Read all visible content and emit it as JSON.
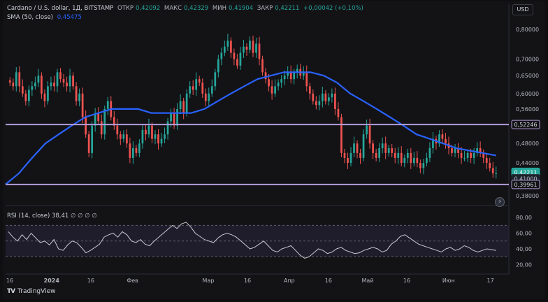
{
  "header": {
    "symbol": "Cardano / U.S. dollar, 1Д, BITSTAMP",
    "open_label": "ОТКР",
    "open": "0,42092",
    "high_label": "МАКС",
    "high": "0,42329",
    "low_label": "МИН",
    "low": "0,41904",
    "close_label": "ЗАКР",
    "close": "0,42211",
    "change": "+0,00042 (+0,10%)",
    "sma_label": "SMA (50, close)",
    "sma_value": "0,45475"
  },
  "currency": "USD",
  "rsi": {
    "label": "RSI (14, close)",
    "value": "38,41",
    "extras": "∅ ∅ ∅ ∅"
  },
  "brand": "TradingView",
  "icons": [
    "lightning-icon",
    "flag-icon-1",
    "flag-icon-2"
  ],
  "colors": {
    "up": "#26a69a",
    "down": "#ef5350",
    "sma": "#2962ff",
    "hline": "#b39ddb",
    "rsi": "#c9c9d0",
    "rsi_band": "#2a2540"
  },
  "chart_data": [
    {
      "type": "candlestick",
      "title": "Cardano / U.S. dollar, 1Д, BITSTAMP",
      "y_ticks": [
        "0,80000",
        "0,70000",
        "0,65000",
        "0,60000",
        "0,56000",
        "0,48000",
        "0,44000",
        "0,40000",
        "0,38000"
      ],
      "y_tick_values": [
        0.8,
        0.7,
        0.65,
        0.6,
        0.56,
        0.48,
        0.44,
        0.4,
        0.38
      ],
      "x_ticks": [
        "16",
        "2024",
        "16",
        "Фев",
        "Мар",
        "16",
        "Апр",
        "16",
        "Май",
        "16",
        "Июн",
        "17"
      ],
      "x_tick_days": [
        0,
        16,
        31,
        47,
        76,
        91,
        107,
        122,
        137,
        152,
        168,
        184
      ],
      "price_badges": [
        {
          "label": "0,52246",
          "value": 0.52246,
          "kind": "level"
        },
        {
          "label": "0,42211",
          "value": 0.42211,
          "kind": "last"
        },
        {
          "label": "0,41000",
          "value": 0.41,
          "kind": "timer"
        },
        {
          "label": "0,39961",
          "value": 0.39961,
          "kind": "level"
        }
      ],
      "horizontal_levels": [
        0.52246,
        0.39961
      ],
      "series": [
        {
          "name": "OHLC (approx. closes)",
          "closes": [
            0.63,
            0.62,
            0.66,
            0.62,
            0.6,
            0.58,
            0.61,
            0.62,
            0.63,
            0.65,
            0.6,
            0.58,
            0.62,
            0.63,
            0.62,
            0.66,
            0.64,
            0.63,
            0.62,
            0.65,
            0.62,
            0.58,
            0.6,
            0.54,
            0.5,
            0.46,
            0.52,
            0.55,
            0.53,
            0.5,
            0.56,
            0.58,
            0.54,
            0.52,
            0.5,
            0.49,
            0.5,
            0.48,
            0.45,
            0.47,
            0.46,
            0.48,
            0.51,
            0.5,
            0.52,
            0.49,
            0.5,
            0.48,
            0.49,
            0.5,
            0.53,
            0.55,
            0.52,
            0.56,
            0.58,
            0.55,
            0.6,
            0.62,
            0.61,
            0.64,
            0.63,
            0.6,
            0.58,
            0.6,
            0.62,
            0.66,
            0.7,
            0.72,
            0.74,
            0.76,
            0.72,
            0.7,
            0.68,
            0.72,
            0.74,
            0.73,
            0.76,
            0.72,
            0.75,
            0.7,
            0.66,
            0.64,
            0.62,
            0.6,
            0.62,
            0.63,
            0.64,
            0.65,
            0.66,
            0.64,
            0.66,
            0.67,
            0.65,
            0.66,
            0.62,
            0.6,
            0.58,
            0.57,
            0.58,
            0.6,
            0.58,
            0.59,
            0.6,
            0.56,
            0.54,
            0.46,
            0.45,
            0.44,
            0.46,
            0.48,
            0.46,
            0.45,
            0.5,
            0.52,
            0.48,
            0.46,
            0.45,
            0.47,
            0.48,
            0.46,
            0.47,
            0.46,
            0.45,
            0.46,
            0.44,
            0.45,
            0.46,
            0.44,
            0.45,
            0.44,
            0.43,
            0.44,
            0.45,
            0.47,
            0.49,
            0.48,
            0.5,
            0.49,
            0.48,
            0.47,
            0.46,
            0.47,
            0.46,
            0.45,
            0.45,
            0.46,
            0.45,
            0.46,
            0.47,
            0.46,
            0.45,
            0.44,
            0.43,
            0.42,
            0.42
          ]
        },
        {
          "name": "SMA (50, close)",
          "values": [
            0.4,
            0.42,
            0.45,
            0.48,
            0.5,
            0.52,
            0.54,
            0.55,
            0.56,
            0.56,
            0.56,
            0.55,
            0.55,
            0.55,
            0.55,
            0.56,
            0.58,
            0.6,
            0.62,
            0.64,
            0.65,
            0.66,
            0.66,
            0.66,
            0.65,
            0.63,
            0.6,
            0.58,
            0.56,
            0.54,
            0.52,
            0.5,
            0.49,
            0.48,
            0.47,
            0.465,
            0.46,
            0.455
          ]
        }
      ]
    },
    {
      "type": "line",
      "title": "RSI (14, close)",
      "y_ticks": [
        "80,00",
        "60,00",
        "40,00",
        "20,00"
      ],
      "y_tick_values": [
        80,
        60,
        40,
        20
      ],
      "band": [
        30,
        70
      ],
      "values": [
        62,
        55,
        50,
        58,
        52,
        60,
        54,
        48,
        50,
        45,
        52,
        40,
        38,
        45,
        50,
        48,
        42,
        35,
        38,
        42,
        46,
        55,
        58,
        60,
        55,
        62,
        58,
        50,
        48,
        52,
        46,
        44,
        50,
        55,
        60,
        65,
        70,
        66,
        72,
        74,
        68,
        60,
        56,
        52,
        50,
        48,
        54,
        58,
        60,
        58,
        55,
        50,
        45,
        40,
        42,
        46,
        50,
        44,
        38,
        36,
        40,
        42,
        44,
        38,
        32,
        28,
        30,
        35,
        40,
        38,
        34,
        36,
        40,
        42,
        38,
        36,
        34,
        35,
        38,
        40,
        42,
        40,
        36,
        38,
        46,
        50,
        56,
        58,
        54,
        50,
        46,
        44,
        42,
        40,
        38,
        36,
        40,
        42,
        38,
        40,
        44,
        42,
        38,
        36,
        38,
        40,
        39,
        38
      ]
    }
  ]
}
